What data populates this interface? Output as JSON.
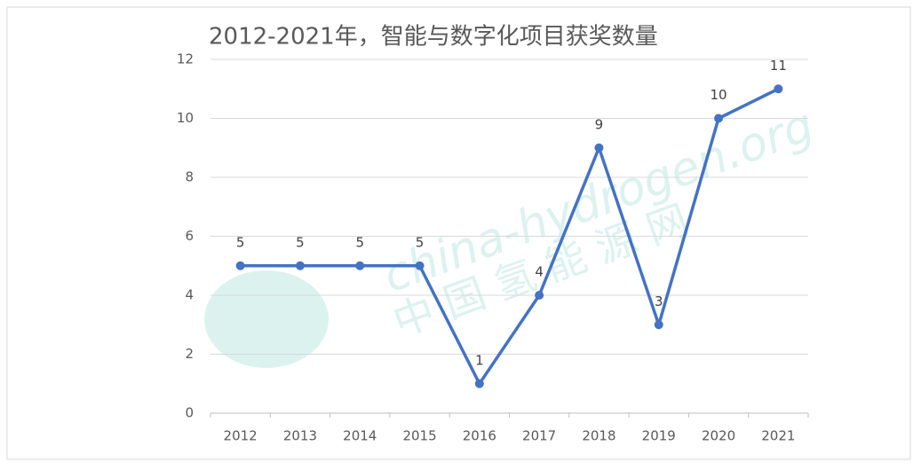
{
  "chart_data": {
    "type": "line",
    "title": "2012-2021年，智能与数字化项目获奖数量",
    "categories": [
      "2012",
      "2013",
      "2014",
      "2015",
      "2016",
      "2017",
      "2018",
      "2019",
      "2020",
      "2021"
    ],
    "values": [
      5,
      5,
      5,
      5,
      1,
      4,
      9,
      3,
      10,
      11
    ],
    "color": "#4472c4",
    "ylim": [
      0,
      12
    ],
    "yticks": [
      0,
      2,
      4,
      6,
      8,
      10,
      12
    ],
    "grid": true,
    "data_labels": true,
    "watermark": {
      "text": "china-hydrogen.org",
      "subtext": "中 国 氢 能 源 网"
    }
  }
}
